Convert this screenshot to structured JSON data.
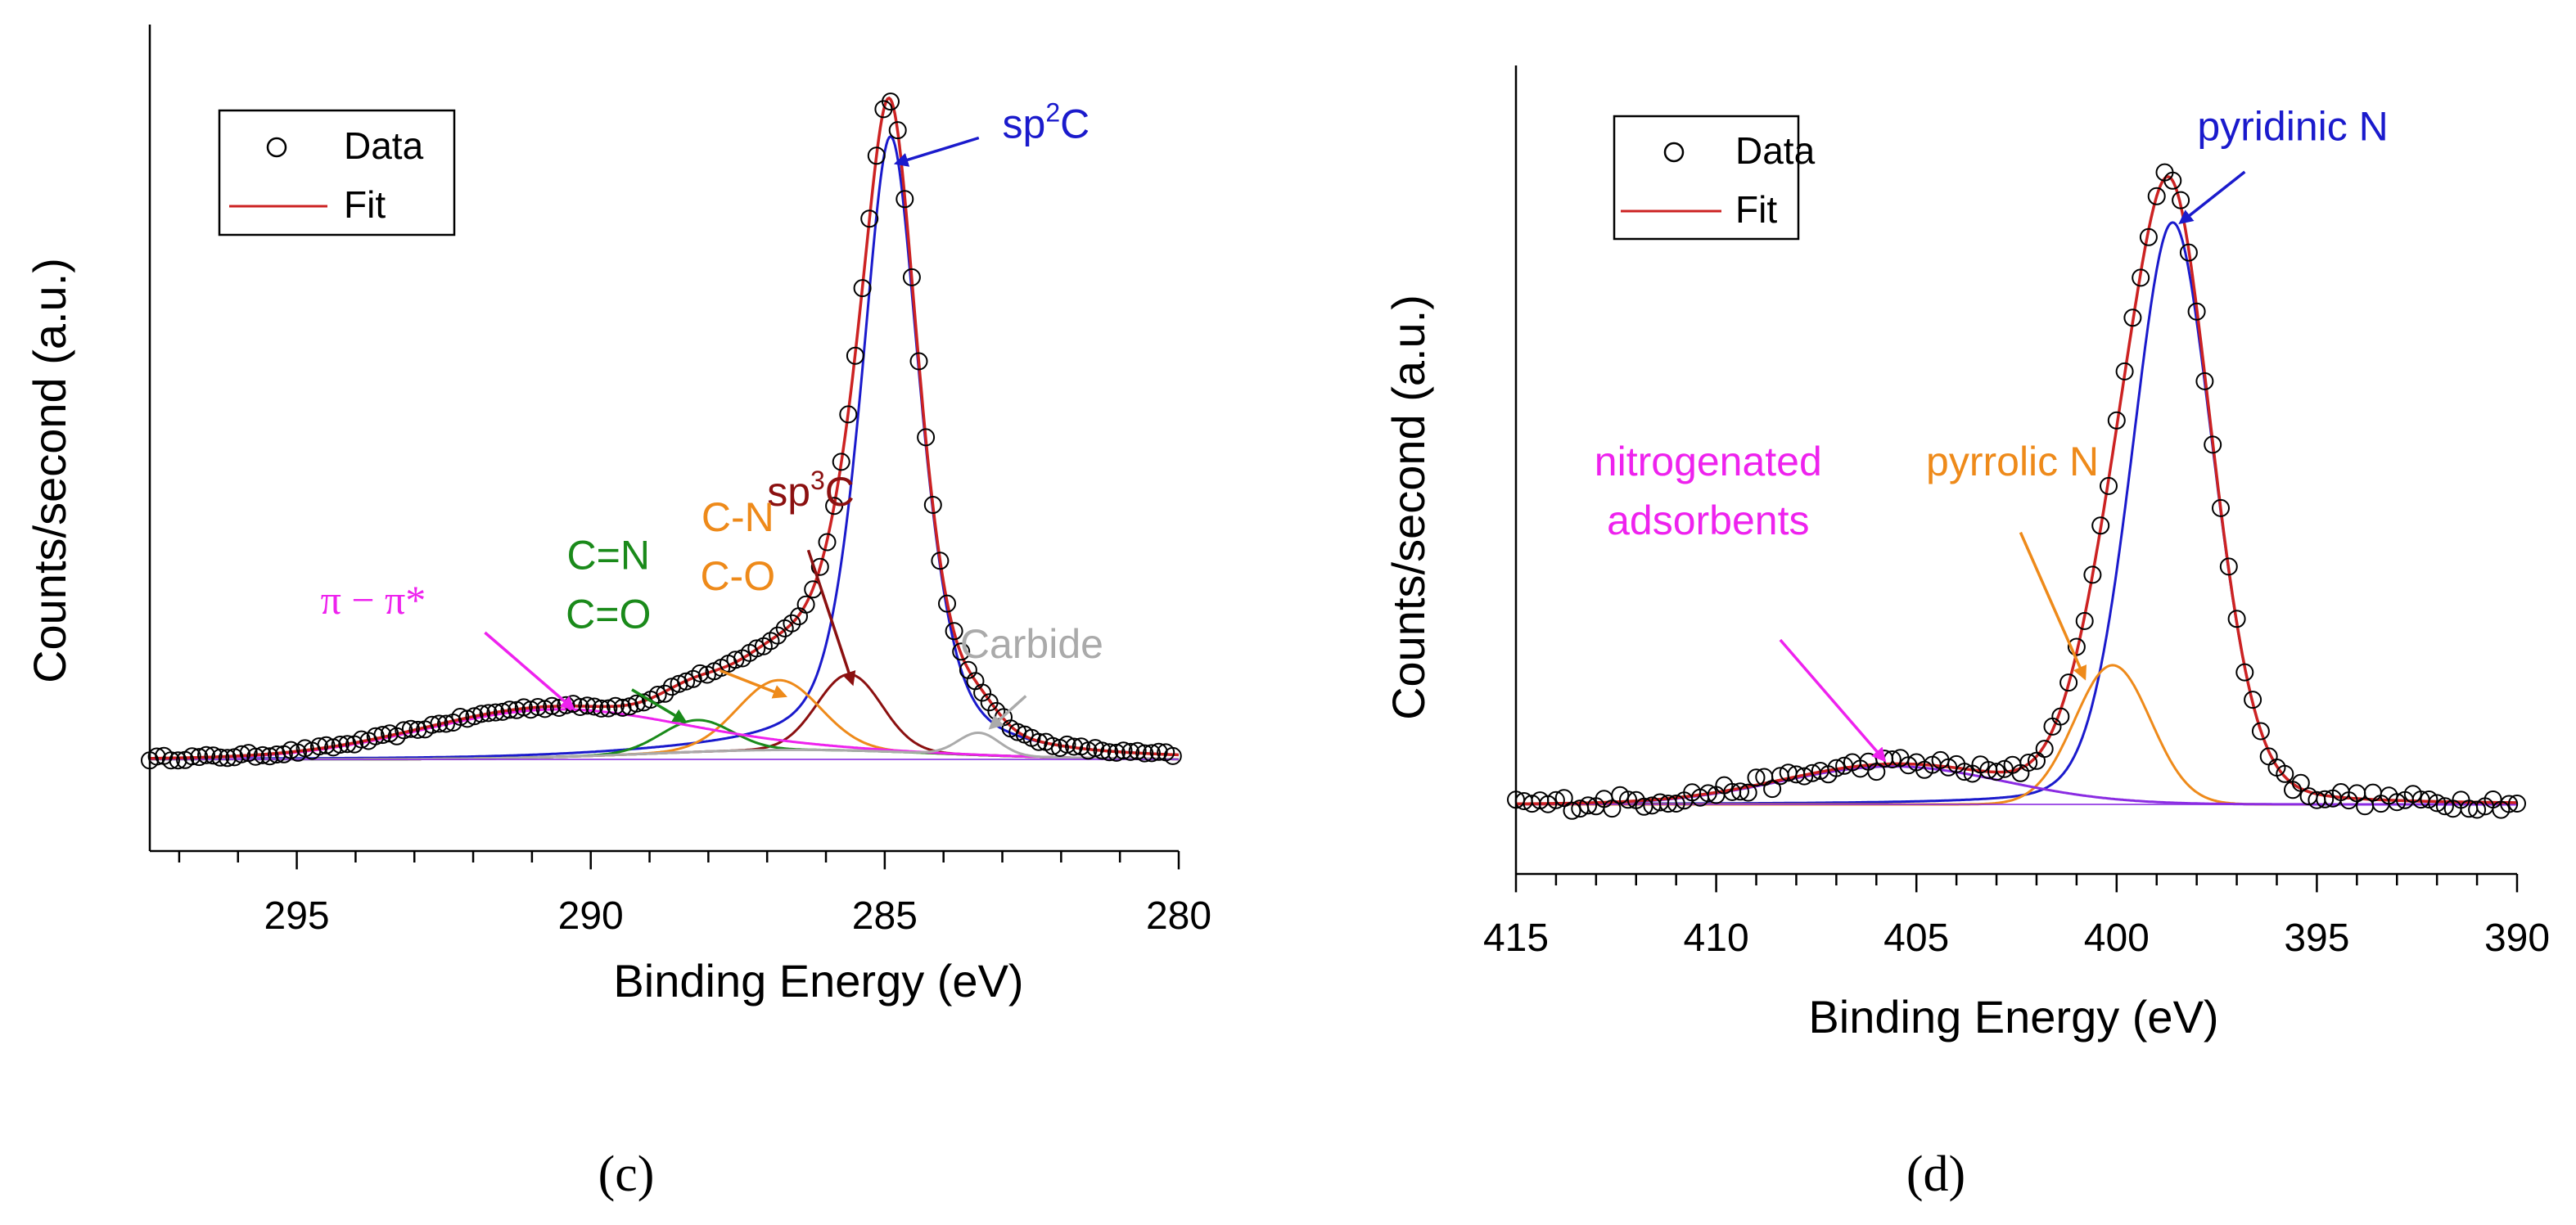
{
  "colors": {
    "axis": "#000000",
    "fit": "#cc2222",
    "blue": "#1a1acc",
    "orange": "#ee8a1a",
    "darkred": "#8b1010",
    "green": "#1a8a1a",
    "magenta": "#ee22ee",
    "gray": "#aaaaaa",
    "purple": "#8a2be2"
  },
  "chart_data": [
    {
      "type": "line",
      "panel_label": "(c)",
      "title": "",
      "xlabel": "Binding Energy (eV)",
      "ylabel": "Counts/second (a.u.)",
      "xlim": [
        297.5,
        280
      ],
      "ylim": [
        -0.12,
        1.12
      ],
      "x_reversed": true,
      "yticks_shown": false,
      "xticks": [
        295,
        290,
        285,
        280
      ],
      "xtick_labels": [
        "295",
        "290",
        "285",
        "280"
      ],
      "legend": {
        "position": "top-left",
        "entries": [
          "Data",
          "Fit"
        ]
      },
      "background": {
        "const": 0.0,
        "shoulder_amp": 0.015,
        "shoulder_center": 286.5,
        "shoulder_width": 2.5
      },
      "components": [
        {
          "name": "sp2C",
          "color": "blue",
          "center": 284.9,
          "amp": 0.97,
          "width": 0.55,
          "lor": 0.55
        },
        {
          "name": "sp3C",
          "color": "darkred",
          "center": 285.6,
          "amp": 0.12,
          "width": 0.55,
          "lor": 0.0
        },
        {
          "name": "C-N / C-O",
          "color": "orange",
          "center": 286.8,
          "amp": 0.11,
          "width": 0.7,
          "lor": 0.0
        },
        {
          "name": "C=N / C=O",
          "color": "green",
          "center": 288.2,
          "amp": 0.05,
          "width": 0.6,
          "lor": 0.0
        },
        {
          "name": "pi-pi*",
          "color": "magenta",
          "center": 290.7,
          "amp": 0.075,
          "width": 2.2,
          "lor": 0.0
        },
        {
          "name": "Carbide",
          "color": "gray",
          "center": 283.4,
          "amp": 0.035,
          "width": 0.35,
          "lor": 0.0
        }
      ],
      "fit_color": "fit",
      "data_points": {
        "x_start": 297.5,
        "x_end": 280.0,
        "step": 0.12,
        "noise": 0.004
      },
      "annotations": [
        {
          "lines": [
            "sp",
            "2",
            "C"
          ],
          "superscript": true,
          "color": "blue",
          "x": 283.0,
          "y": 0.98,
          "arrow_from": [
            283.4,
            0.98
          ],
          "arrow_to": [
            284.8,
            0.94
          ]
        },
        {
          "lines": [
            "sp",
            "3",
            "C"
          ],
          "superscript": true,
          "color": "darkred",
          "x": 287.0,
          "y": 0.4,
          "arrow_from": [
            286.3,
            0.33
          ],
          "arrow_to": [
            285.55,
            0.12
          ]
        },
        {
          "text1": "C-N",
          "text2": "C-O",
          "color": "orange",
          "x": 287.5,
          "y": 0.36,
          "arrow_from": [
            287.8,
            0.14
          ],
          "arrow_to": [
            286.7,
            0.1
          ]
        },
        {
          "text1": "C=N",
          "text2": "C=O",
          "color": "green",
          "x": 289.7,
          "y": 0.3,
          "arrow_from": [
            289.3,
            0.11
          ],
          "arrow_to": [
            288.4,
            0.06
          ]
        },
        {
          "text": "π − π*",
          "color": "magenta",
          "x": 293.7,
          "y": 0.23,
          "arrow_from": [
            291.8,
            0.2
          ],
          "arrow_to": [
            290.3,
            0.08
          ]
        },
        {
          "text": "Carbide",
          "color": "gray",
          "x": 282.5,
          "y": 0.16,
          "arrow_from": [
            282.6,
            0.1
          ],
          "arrow_to": [
            283.2,
            0.05
          ]
        }
      ]
    },
    {
      "type": "line",
      "panel_label": "(d)",
      "title": "",
      "xlabel": "Binding Energy (eV)",
      "ylabel": "Counts/second (a.u.)",
      "xlim": [
        415,
        390
      ],
      "ylim": [
        -0.12,
        1.15
      ],
      "x_reversed": true,
      "yticks_shown": false,
      "xticks": [
        415,
        410,
        405,
        400,
        395,
        390
      ],
      "xtick_labels": [
        "415",
        "410",
        "405",
        "400",
        "395",
        "390"
      ],
      "legend": {
        "position": "top-left",
        "entries": [
          "Data",
          "Fit"
        ]
      },
      "background": {
        "const": 0.0,
        "shoulder_amp": 0.0,
        "shoulder_center": 0,
        "shoulder_width": 1
      },
      "components": [
        {
          "name": "pyridinic N",
          "color": "blue",
          "center": 398.6,
          "amp": 0.92,
          "width": 1.05,
          "lor": 0.2
        },
        {
          "name": "pyrrolic N",
          "color": "orange",
          "center": 400.1,
          "amp": 0.22,
          "width": 0.95,
          "lor": 0.0
        },
        {
          "name": "nitrogenated adsorbents",
          "color": "purple",
          "center": 405.6,
          "amp": 0.06,
          "width": 2.8,
          "lor": 0.0
        }
      ],
      "fit_color": "fit",
      "data_points": {
        "x_start": 415.0,
        "x_end": 390.0,
        "step": 0.2,
        "noise": 0.012
      },
      "annotations": [
        {
          "text": "pyridinic N",
          "color": "blue",
          "x": 395.6,
          "y": 1.05,
          "arrow_from": [
            396.8,
            1.0
          ],
          "arrow_to": [
            398.4,
            0.92
          ]
        },
        {
          "text": "pyrrolic N",
          "color": "orange",
          "x": 402.6,
          "y": 0.52,
          "arrow_from": [
            402.4,
            0.43
          ],
          "arrow_to": [
            400.8,
            0.2
          ]
        },
        {
          "text1": "nitrogenated",
          "text2": "adsorbents",
          "color": "magenta",
          "x": 410.2,
          "y": 0.52,
          "arrow_from": [
            408.4,
            0.26
          ],
          "arrow_to": [
            405.8,
            0.07
          ]
        }
      ]
    }
  ]
}
